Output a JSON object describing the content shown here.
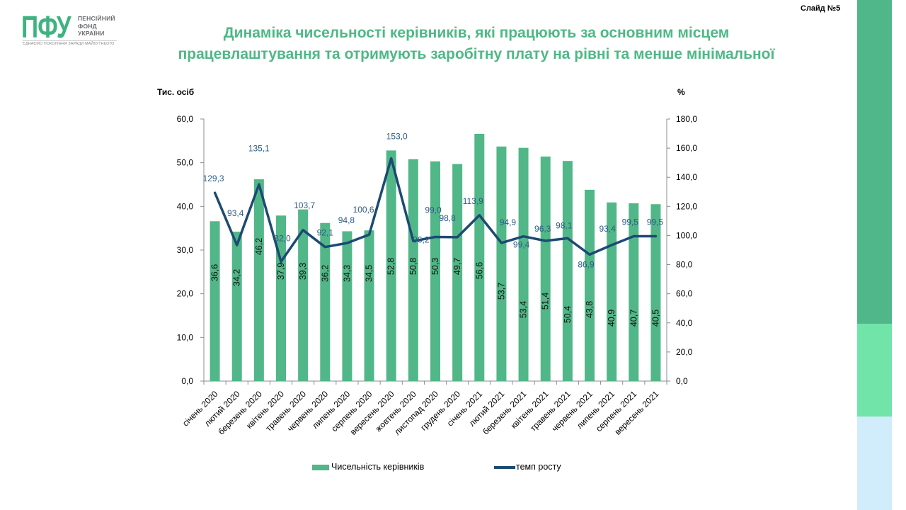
{
  "slide_label": "Слайд №5",
  "logo": {
    "abbr": "ПФУ",
    "name_lines": [
      "ПЕНСІЙНИЙ",
      "ФОНД",
      "УКРАЇНИ"
    ],
    "slogan": "ЄДНАЄМО ПОКОЛІННЯ ЗАРАДИ МАЙБУТНЬОГО"
  },
  "colors": {
    "brand_green": "#3fb37f",
    "title": "#4eb886",
    "bar": "#52b788",
    "line": "#1c4a72",
    "line_label": "#2d5b86",
    "axis": "#8c8c8c",
    "stripe": [
      "#4fb78a",
      "#71e4aa",
      "#d1ecfa"
    ]
  },
  "chart_data": {
    "type": "bar",
    "title": [
      "Динаміка чисельності керівників, які працюють за основним місцем",
      "працевлаштування та отримують заробітну плату на рівні та менше мінімальної"
    ],
    "categories": [
      "січень 2020",
      "лютий 2020",
      "березень 2020",
      "квітень 2020",
      "травень 2020",
      "червень 2020",
      "липень 2020",
      "серпень 2020",
      "вересень 2020",
      "жовтень 2020",
      "листопад 2020",
      "грудень 2020",
      "січень 2021",
      "лютий 2021",
      "березень 2021",
      "квітень 2021",
      "травень 2021",
      "червень 2021",
      "липень 2021",
      "серпень 2021",
      "вересень 2021"
    ],
    "series": [
      {
        "name": "Чисельність керівників",
        "type": "bar",
        "axis": "left",
        "values": [
          36.6,
          34.2,
          46.2,
          37.9,
          39.3,
          36.2,
          34.3,
          34.5,
          52.8,
          50.8,
          50.3,
          49.7,
          56.6,
          53.7,
          53.4,
          51.4,
          50.4,
          43.8,
          40.9,
          40.7,
          40.5
        ],
        "data_labels": [
          "36,6",
          "34,2",
          "46,2",
          "37,9",
          "39,3",
          "36,2",
          "34,3",
          "34,5",
          "52,8",
          "50,8",
          "50,3",
          "49,7",
          "56,6",
          "53,7",
          "53,4",
          "51,4",
          "50,4",
          "43,8",
          "40,9",
          "40,7",
          "40,5"
        ]
      },
      {
        "name": "темп росту",
        "type": "line",
        "axis": "right",
        "values": [
          129.3,
          93.4,
          135.1,
          82.0,
          103.7,
          92.1,
          94.8,
          100.6,
          153.0,
          96.2,
          99.0,
          98.8,
          113.9,
          94.9,
          99.4,
          96.3,
          98.1,
          86.9,
          93.4,
          99.5,
          99.5
        ],
        "data_labels": [
          "129,3",
          "93,4",
          "135,1",
          "82,0",
          "103,7",
          "92,1",
          "94,8",
          "100,6",
          "153,0",
          "96,2",
          "99,0",
          "98,8",
          "113,9",
          "94,9",
          "99,4",
          "96,3",
          "98,1",
          "86,9",
          "93,4",
          "99,5",
          "99,5"
        ]
      }
    ],
    "xlabel": "",
    "ylabel": "Тис. осіб",
    "ylim": [
      0,
      60
    ],
    "yticks": [
      0,
      10,
      20,
      30,
      40,
      50,
      60
    ],
    "ytick_labels": [
      "0,0",
      "10,0",
      "20,0",
      "30,0",
      "40,0",
      "50,0",
      "60,0"
    ],
    "y2label": "%",
    "y2lim": [
      0,
      180
    ],
    "y2ticks": [
      0,
      20,
      40,
      60,
      80,
      100,
      120,
      140,
      160,
      180
    ],
    "y2tick_labels": [
      "0,0",
      "20,0",
      "40,0",
      "60,0",
      "80,0",
      "100,0",
      "120,0",
      "140,0",
      "160,0",
      "180,0"
    ],
    "grid": false,
    "legend": "bottom"
  }
}
